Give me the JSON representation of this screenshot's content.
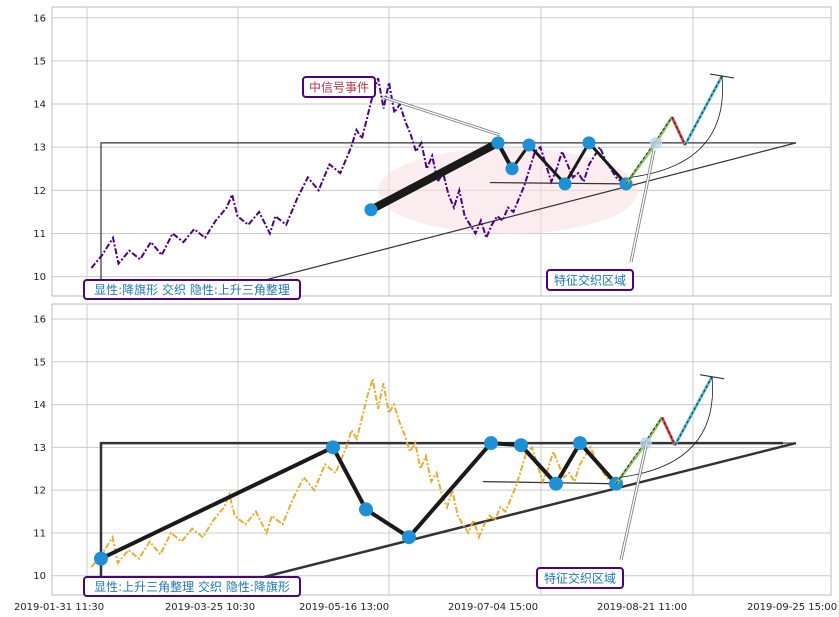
{
  "chart_data": [
    {
      "type": "line",
      "x_ticks": [
        "2019-01-31 11:30",
        "2019-03-25 10:30",
        "2019-05-16 13:00",
        "2019-07-04 15:00",
        "2019-08-21 11:00",
        "2019-09-25 15:00"
      ],
      "y_ticks": [
        10,
        11,
        12,
        13,
        14,
        15,
        16
      ],
      "ylim": [
        9.55,
        16.25
      ],
      "grid": true,
      "price_color": "#4b0082",
      "price": [
        [
          0.01,
          10.2
        ],
        [
          0.03,
          10.5
        ],
        [
          0.05,
          10.9
        ],
        [
          0.06,
          10.3
        ],
        [
          0.08,
          10.6
        ],
        [
          0.1,
          10.4
        ],
        [
          0.12,
          10.8
        ],
        [
          0.14,
          10.5
        ],
        [
          0.16,
          11.0
        ],
        [
          0.18,
          10.8
        ],
        [
          0.2,
          11.1
        ],
        [
          0.22,
          10.9
        ],
        [
          0.24,
          11.3
        ],
        [
          0.26,
          11.6
        ],
        [
          0.27,
          11.9
        ],
        [
          0.28,
          11.4
        ],
        [
          0.3,
          11.2
        ],
        [
          0.32,
          11.5
        ],
        [
          0.34,
          11.0
        ],
        [
          0.35,
          11.4
        ],
        [
          0.37,
          11.2
        ],
        [
          0.39,
          11.8
        ],
        [
          0.41,
          12.3
        ],
        [
          0.43,
          12.0
        ],
        [
          0.45,
          12.6
        ],
        [
          0.47,
          12.4
        ],
        [
          0.49,
          13.0
        ],
        [
          0.5,
          13.4
        ],
        [
          0.51,
          13.2
        ],
        [
          0.53,
          14.2
        ],
        [
          0.54,
          14.6
        ],
        [
          0.55,
          13.9
        ],
        [
          0.56,
          14.5
        ],
        [
          0.57,
          13.8
        ],
        [
          0.58,
          14.0
        ],
        [
          0.59,
          13.6
        ],
        [
          0.6,
          13.3
        ],
        [
          0.61,
          12.9
        ],
        [
          0.62,
          13.1
        ],
        [
          0.63,
          12.5
        ],
        [
          0.64,
          12.8
        ],
        [
          0.65,
          12.2
        ],
        [
          0.66,
          12.4
        ],
        [
          0.67,
          11.9
        ],
        [
          0.68,
          11.6
        ],
        [
          0.69,
          12.0
        ],
        [
          0.7,
          11.4
        ],
        [
          0.71,
          11.2
        ],
        [
          0.72,
          11.0
        ],
        [
          0.73,
          11.3
        ],
        [
          0.74,
          10.9
        ],
        [
          0.75,
          11.2
        ],
        [
          0.76,
          11.4
        ],
        [
          0.77,
          11.3
        ],
        [
          0.78,
          11.6
        ],
        [
          0.79,
          11.5
        ],
        [
          0.8,
          11.8
        ],
        [
          0.81,
          12.1
        ],
        [
          0.82,
          12.5
        ],
        [
          0.83,
          12.9
        ],
        [
          0.84,
          13.0
        ],
        [
          0.85,
          12.6
        ],
        [
          0.86,
          12.2
        ],
        [
          0.87,
          12.5
        ],
        [
          0.88,
          12.9
        ],
        [
          0.89,
          12.6
        ],
        [
          0.9,
          12.3
        ],
        [
          0.91,
          12.4
        ],
        [
          0.92,
          12.2
        ],
        [
          0.93,
          12.6
        ],
        [
          0.94,
          12.8
        ],
        [
          0.95,
          13.0
        ],
        [
          0.96,
          12.7
        ],
        [
          0.97,
          12.5
        ],
        [
          0.98,
          12.3
        ],
        [
          0.99,
          12.2
        ],
        [
          1.0,
          12.15
        ]
      ],
      "boxes": [
        {
          "text": "中信号事件",
          "color": "#b03a48"
        },
        {
          "text": "特征交织区域",
          "color": "#1f77b4"
        },
        {
          "text": "显性:降旗形 交织 隐性:上升三角整理",
          "color": "#1f77b4"
        }
      ]
    },
    {
      "type": "line",
      "x_ticks": [
        "2019-01-31 11:30",
        "2019-03-25 10:30",
        "2019-05-16 13:00",
        "2019-07-04 15:00",
        "2019-08-21 11:00",
        "2019-09-25 15:00"
      ],
      "y_ticks": [
        10,
        11,
        12,
        13,
        14,
        15,
        16
      ],
      "ylim": [
        9.55,
        16.35
      ],
      "grid": true,
      "price_color": "#e5ae38",
      "price": [
        [
          0.01,
          10.2
        ],
        [
          0.03,
          10.5
        ],
        [
          0.05,
          10.9
        ],
        [
          0.06,
          10.3
        ],
        [
          0.08,
          10.6
        ],
        [
          0.1,
          10.4
        ],
        [
          0.12,
          10.8
        ],
        [
          0.14,
          10.5
        ],
        [
          0.16,
          11.0
        ],
        [
          0.18,
          10.8
        ],
        [
          0.2,
          11.1
        ],
        [
          0.22,
          10.9
        ],
        [
          0.24,
          11.3
        ],
        [
          0.26,
          11.6
        ],
        [
          0.27,
          11.9
        ],
        [
          0.28,
          11.4
        ],
        [
          0.3,
          11.2
        ],
        [
          0.32,
          11.5
        ],
        [
          0.34,
          11.0
        ],
        [
          0.35,
          11.4
        ],
        [
          0.37,
          11.2
        ],
        [
          0.39,
          11.8
        ],
        [
          0.41,
          12.3
        ],
        [
          0.43,
          12.0
        ],
        [
          0.45,
          12.6
        ],
        [
          0.47,
          12.4
        ],
        [
          0.49,
          13.0
        ],
        [
          0.5,
          13.4
        ],
        [
          0.51,
          13.2
        ],
        [
          0.53,
          14.2
        ],
        [
          0.54,
          14.6
        ],
        [
          0.55,
          13.9
        ],
        [
          0.56,
          14.5
        ],
        [
          0.57,
          13.8
        ],
        [
          0.58,
          14.0
        ],
        [
          0.59,
          13.6
        ],
        [
          0.6,
          13.3
        ],
        [
          0.61,
          12.9
        ],
        [
          0.62,
          13.1
        ],
        [
          0.63,
          12.5
        ],
        [
          0.64,
          12.8
        ],
        [
          0.65,
          12.2
        ],
        [
          0.66,
          12.4
        ],
        [
          0.67,
          11.9
        ],
        [
          0.68,
          11.6
        ],
        [
          0.69,
          12.0
        ],
        [
          0.7,
          11.4
        ],
        [
          0.71,
          11.2
        ],
        [
          0.72,
          11.0
        ],
        [
          0.73,
          11.3
        ],
        [
          0.74,
          10.9
        ],
        [
          0.75,
          11.2
        ],
        [
          0.76,
          11.4
        ],
        [
          0.77,
          11.3
        ],
        [
          0.78,
          11.6
        ],
        [
          0.79,
          11.5
        ],
        [
          0.8,
          11.8
        ],
        [
          0.81,
          12.1
        ],
        [
          0.82,
          12.5
        ],
        [
          0.83,
          12.9
        ],
        [
          0.84,
          13.0
        ],
        [
          0.85,
          12.6
        ],
        [
          0.86,
          12.2
        ],
        [
          0.87,
          12.5
        ],
        [
          0.88,
          12.9
        ],
        [
          0.89,
          12.6
        ],
        [
          0.9,
          12.3
        ],
        [
          0.91,
          12.4
        ],
        [
          0.92,
          12.2
        ],
        [
          0.93,
          12.6
        ],
        [
          0.94,
          12.8
        ],
        [
          0.95,
          13.0
        ],
        [
          0.96,
          12.7
        ],
        [
          0.97,
          12.5
        ],
        [
          0.98,
          12.3
        ],
        [
          0.99,
          12.2
        ],
        [
          1.0,
          12.15
        ]
      ],
      "boxes": [
        {
          "text": "特征交织区域",
          "color": "#1f77b4"
        },
        {
          "text": "显性:上升三角整理 交织 隐性:降旗形",
          "color": "#1f77b4"
        }
      ]
    }
  ]
}
